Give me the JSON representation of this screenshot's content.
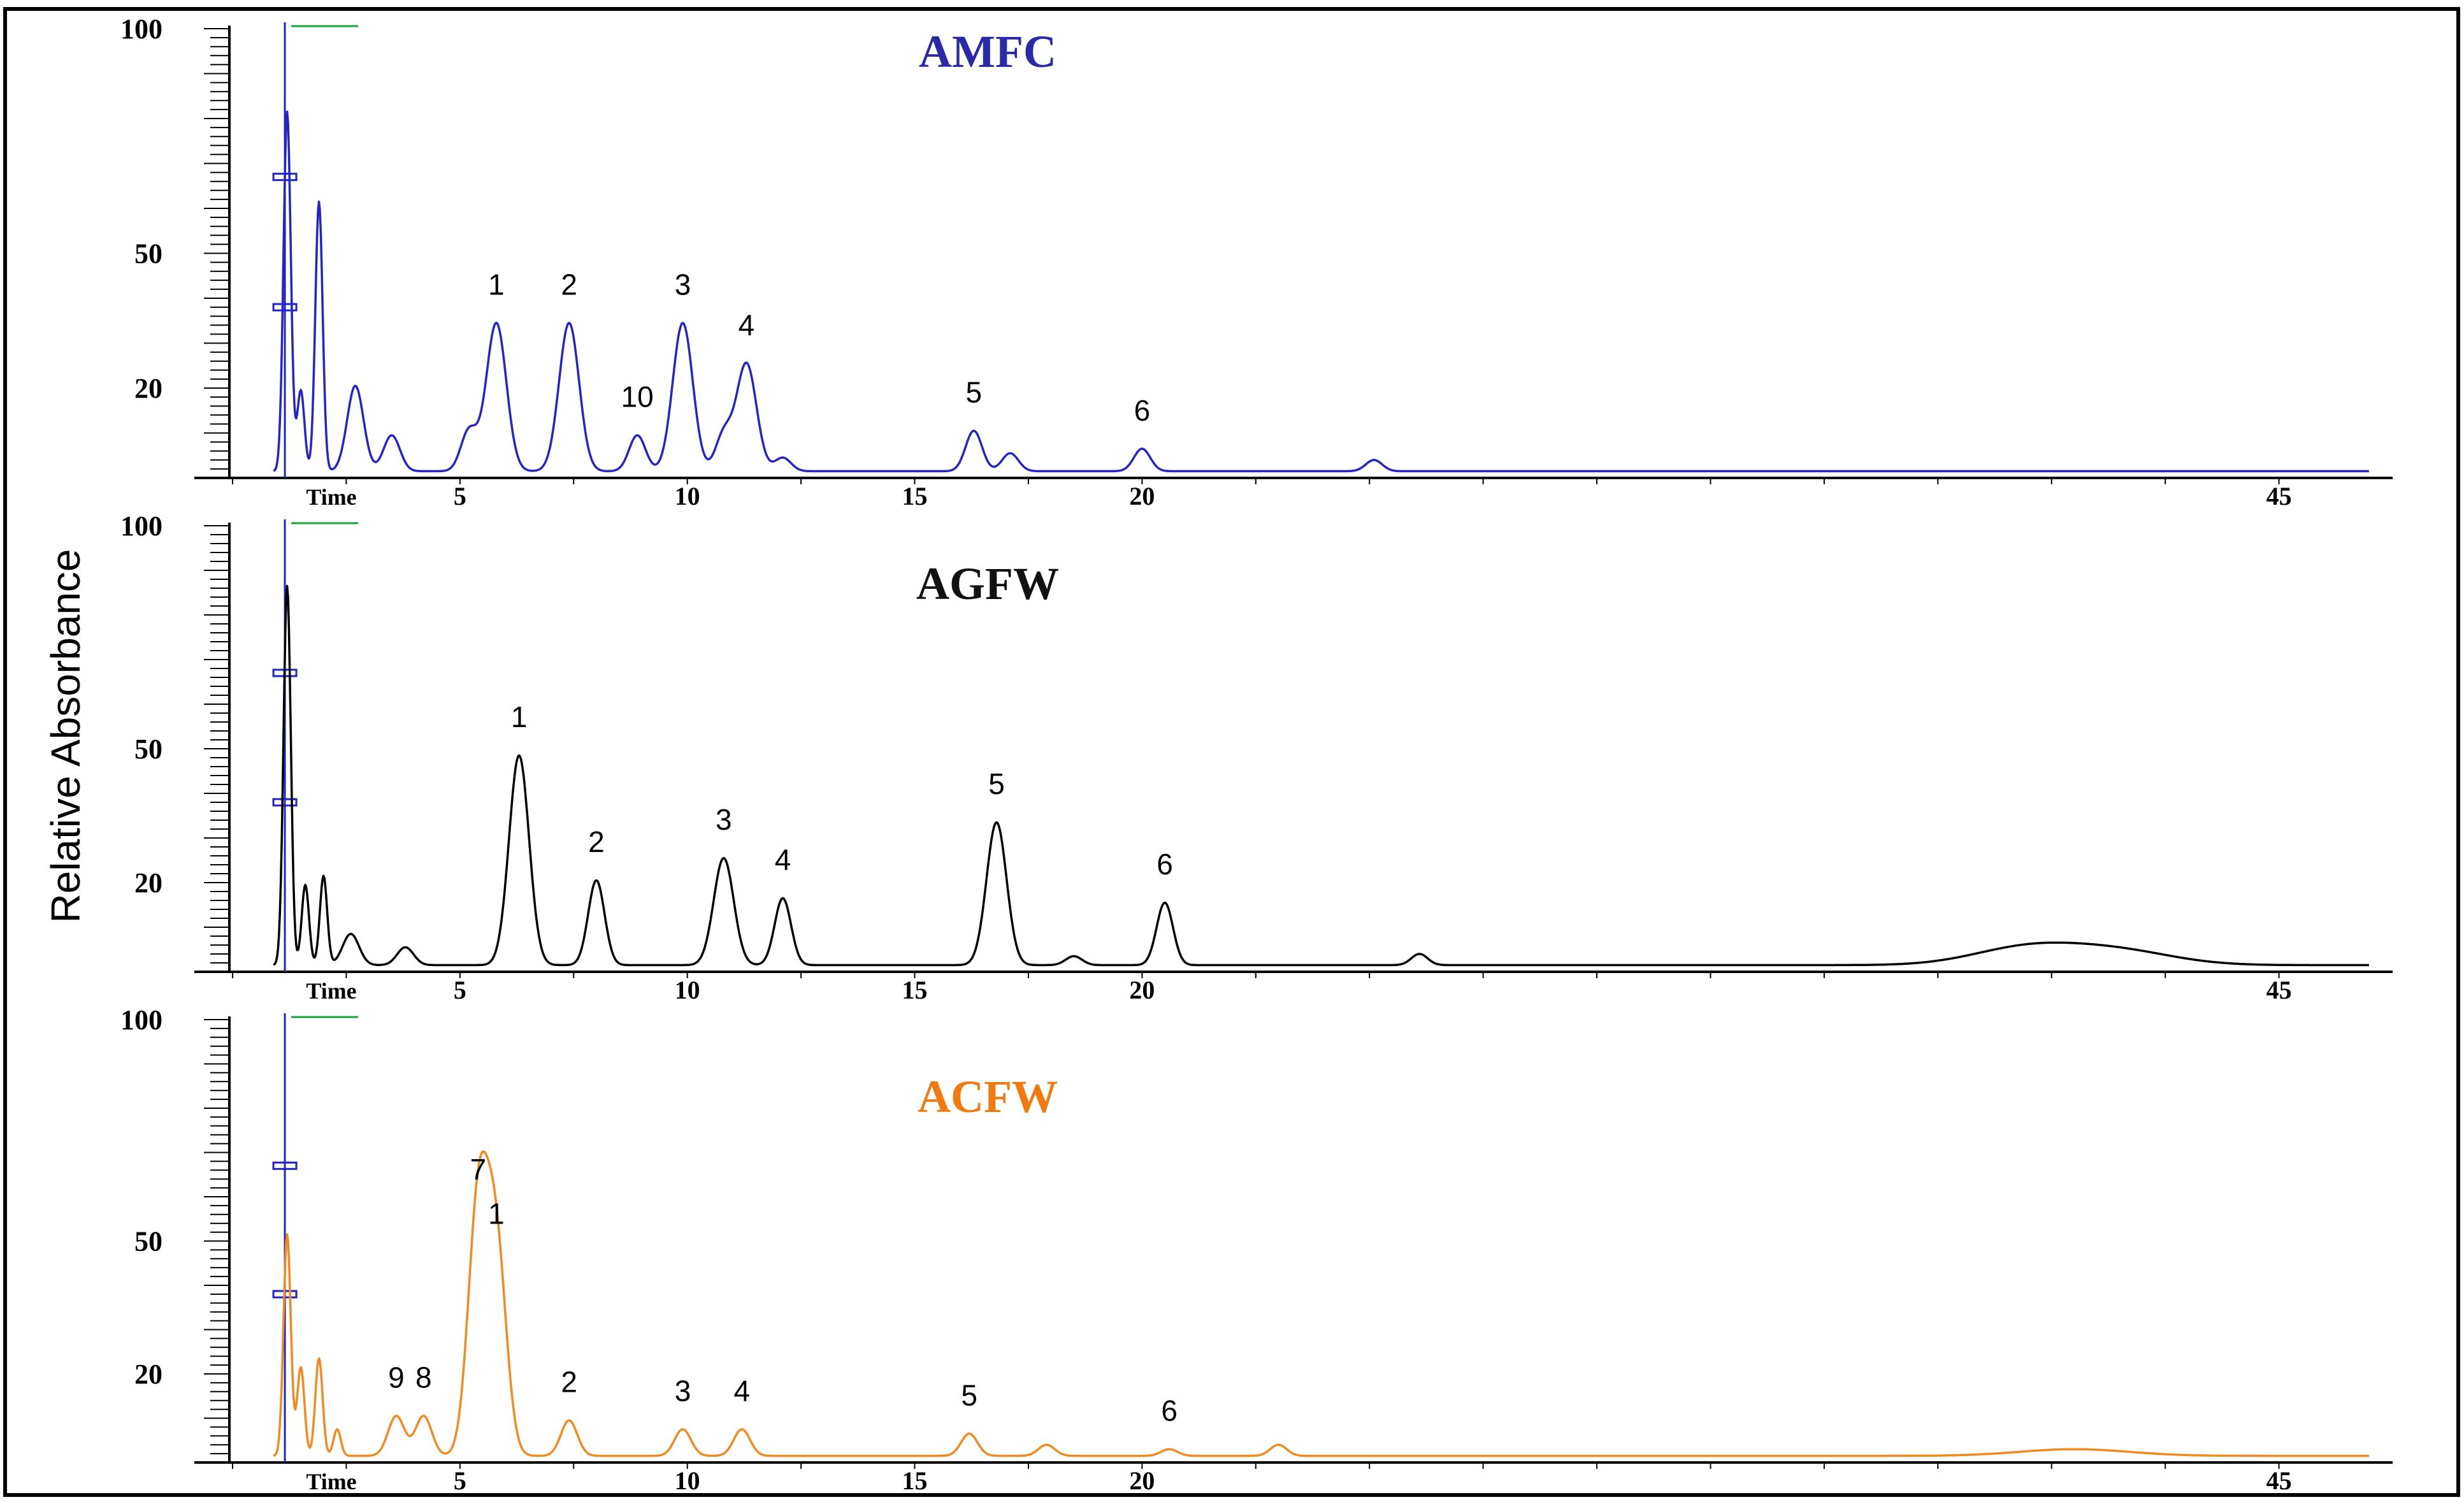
{
  "figure": {
    "ylabel": "Relative Absorbance",
    "xlabel": "Time"
  },
  "chart_data": [
    {
      "type": "line",
      "title": "AMFC",
      "title_color": "#2a2aa8",
      "line_color": "#2424c8",
      "xlabel": "Time",
      "ylabel": "Relative Absorbance",
      "y_ticks": [
        20,
        50,
        100
      ],
      "x_ticks": [
        5,
        10,
        15,
        20,
        45
      ],
      "xlim": [
        0,
        47.5
      ],
      "ylim": [
        0,
        100
      ],
      "peaks": [
        {
          "label": "1",
          "rt": 5.8,
          "height": 33
        },
        {
          "label": "2",
          "rt": 7.4,
          "height": 33
        },
        {
          "label": "10",
          "rt": 8.9,
          "height": 8
        },
        {
          "label": "3",
          "rt": 9.9,
          "height": 33
        },
        {
          "label": "4",
          "rt": 11.3,
          "height": 24
        },
        {
          "label": "5",
          "rt": 16.3,
          "height": 9
        },
        {
          "label": "6",
          "rt": 20.0,
          "height": 5
        }
      ],
      "minor_peaks": [
        {
          "rt": 1.2,
          "height": 80
        },
        {
          "rt": 1.5,
          "height": 18
        },
        {
          "rt": 1.9,
          "height": 60
        },
        {
          "rt": 2.7,
          "height": 19
        },
        {
          "rt": 3.5,
          "height": 8
        },
        {
          "rt": 5.2,
          "height": 9
        },
        {
          "rt": 10.8,
          "height": 8
        },
        {
          "rt": 12.1,
          "height": 3
        },
        {
          "rt": 17.1,
          "height": 4
        },
        {
          "rt": 25.1,
          "height": 2.5
        }
      ]
    },
    {
      "type": "line",
      "title": "AGFW",
      "title_color": "#111111",
      "line_color": "#000000",
      "xlabel": "Time",
      "ylabel": "Relative Absorbance",
      "y_ticks": [
        20,
        50,
        100
      ],
      "x_ticks": [
        5,
        10,
        15,
        20,
        45
      ],
      "xlim": [
        0,
        47.5
      ],
      "ylim": [
        0,
        100
      ],
      "peaks": [
        {
          "label": "1",
          "rt": 6.3,
          "height": 47
        },
        {
          "label": "2",
          "rt": 8.0,
          "height": 19
        },
        {
          "label": "3",
          "rt": 10.8,
          "height": 24
        },
        {
          "label": "4",
          "rt": 12.1,
          "height": 15
        },
        {
          "label": "5",
          "rt": 16.8,
          "height": 32
        },
        {
          "label": "6",
          "rt": 20.5,
          "height": 14
        }
      ],
      "minor_peaks": [
        {
          "rt": 1.2,
          "height": 85
        },
        {
          "rt": 1.6,
          "height": 18
        },
        {
          "rt": 2.0,
          "height": 20
        },
        {
          "rt": 2.6,
          "height": 7
        },
        {
          "rt": 3.8,
          "height": 4
        },
        {
          "rt": 18.5,
          "height": 2
        },
        {
          "rt": 26.1,
          "height": 2.5
        },
        {
          "rt": 39.5,
          "height": 4
        },
        {
          "rt": 41.5,
          "height": 3
        }
      ]
    },
    {
      "type": "line",
      "title": "ACFW",
      "title_color": "#f07a10",
      "line_color": "#f28a20",
      "xlabel": "Time",
      "ylabel": "Relative Absorbance",
      "y_ticks": [
        20,
        50,
        100
      ],
      "x_ticks": [
        5,
        10,
        15,
        20,
        45
      ],
      "xlim": [
        0,
        47.5
      ],
      "ylim": [
        0,
        100
      ],
      "peaks": [
        {
          "label": "7",
          "rt": 5.4,
          "height": 56
        },
        {
          "label": "1",
          "rt": 5.8,
          "height": 46
        },
        {
          "label": "9",
          "rt": 3.6,
          "height": 9
        },
        {
          "label": "8",
          "rt": 4.2,
          "height": 9
        },
        {
          "label": "2",
          "rt": 7.4,
          "height": 8
        },
        {
          "label": "3",
          "rt": 9.9,
          "height": 6
        },
        {
          "label": "4",
          "rt": 11.2,
          "height": 6
        },
        {
          "label": "5",
          "rt": 16.2,
          "height": 5
        },
        {
          "label": "6",
          "rt": 20.6,
          "height": 1.5
        }
      ],
      "minor_peaks": [
        {
          "rt": 1.2,
          "height": 50
        },
        {
          "rt": 1.5,
          "height": 20
        },
        {
          "rt": 1.9,
          "height": 22
        },
        {
          "rt": 2.3,
          "height": 6
        },
        {
          "rt": 17.9,
          "height": 2.5
        },
        {
          "rt": 23.0,
          "height": 2.5
        },
        {
          "rt": 40.5,
          "height": 1.5
        }
      ]
    }
  ]
}
